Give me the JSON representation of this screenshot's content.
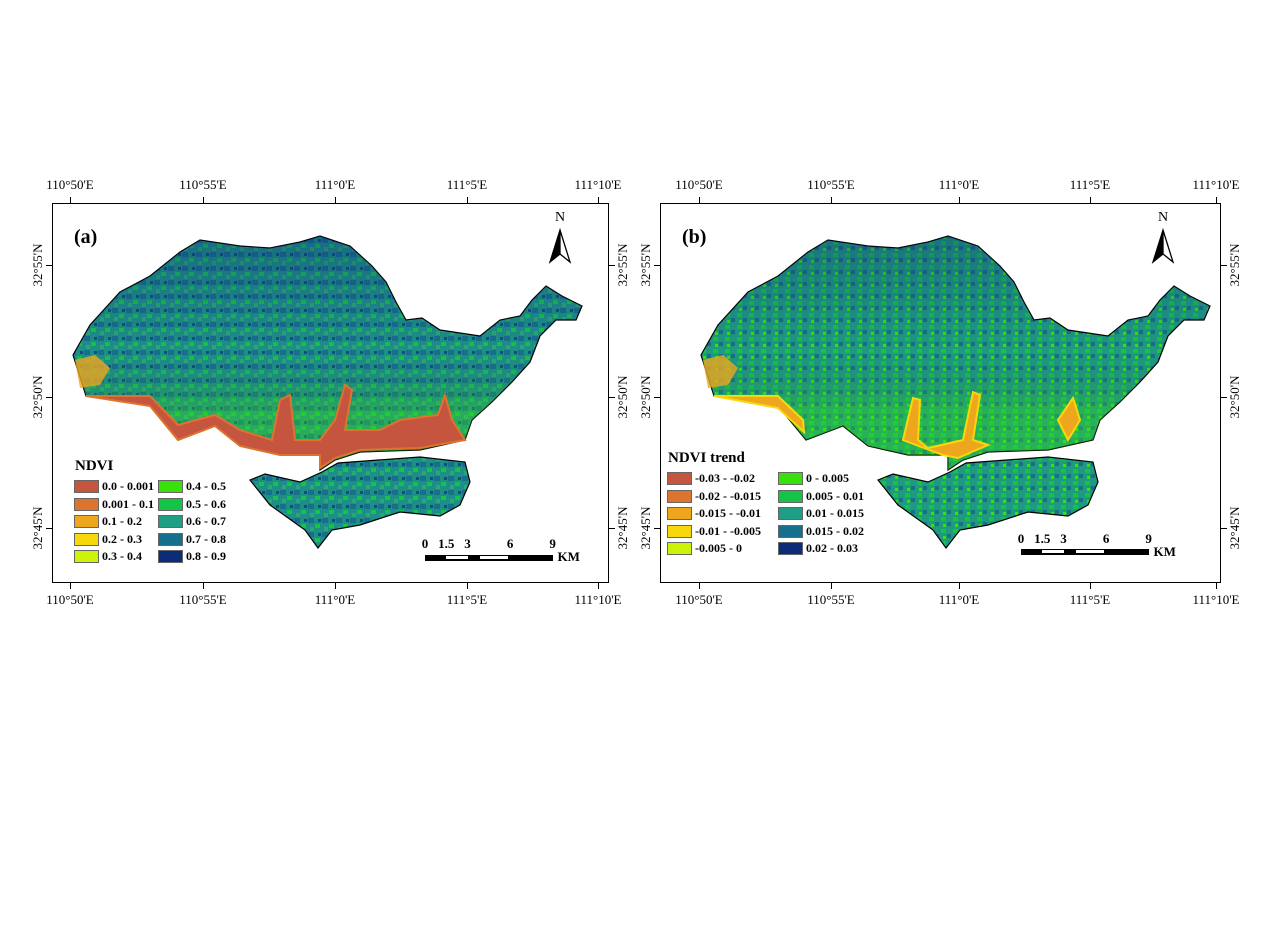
{
  "panels": [
    {
      "label": "(a)",
      "lon_ticks": [
        "110°50'E",
        "110°55'E",
        "111°0'E",
        "111°5'E",
        "111°10'E"
      ],
      "lat_ticks": [
        "32°55'N",
        "32°50'N",
        "32°45'N"
      ],
      "north": "N",
      "legend": {
        "title": "NDVI",
        "items": [
          {
            "label": "0.0 - 0.001",
            "color": "#c5553f"
          },
          {
            "label": "0.001 - 0.1",
            "color": "#dc7430"
          },
          {
            "label": "0.1 - 0.2",
            "color": "#eea61e"
          },
          {
            "label": "0.2 - 0.3",
            "color": "#f7d80c"
          },
          {
            "label": "0.3 - 0.4",
            "color": "#ccf20a"
          },
          {
            "label": "0.4 - 0.5",
            "color": "#3ae00c"
          },
          {
            "label": "0.5 - 0.6",
            "color": "#14c447"
          },
          {
            "label": "0.6 - 0.7",
            "color": "#1e9e84"
          },
          {
            "label": "0.7 - 0.8",
            "color": "#166f8b"
          },
          {
            "label": "0.8 - 0.9",
            "color": "#0d2c78"
          }
        ]
      },
      "scale_bar": {
        "labels": [
          "0",
          "1.5",
          "3",
          "6",
          "9"
        ],
        "unit": "KM"
      }
    },
    {
      "label": "(b)",
      "lon_ticks": [
        "110°50'E",
        "110°55'E",
        "111°0'E",
        "111°5'E",
        "111°10'E"
      ],
      "lat_ticks": [
        "32°55'N",
        "32°50'N",
        "32°45'N"
      ],
      "north": "N",
      "legend": {
        "title": "NDVI trend",
        "items": [
          {
            "label": "-0.03 - -0.02",
            "color": "#c5553f"
          },
          {
            "label": "-0.02 - -0.015",
            "color": "#dc7430"
          },
          {
            "label": "-0.015 - -0.01",
            "color": "#eea61e"
          },
          {
            "label": "-0.01 - -0.005",
            "color": "#f7d80c"
          },
          {
            "label": "-0.005 - 0",
            "color": "#ccf20a"
          },
          {
            "label": "0 - 0.005",
            "color": "#3ae00c"
          },
          {
            "label": "0.005 - 0.01",
            "color": "#14c447"
          },
          {
            "label": "0.01 - 0.015",
            "color": "#1e9e84"
          },
          {
            "label": "0.015 - 0.02",
            "color": "#166f8b"
          },
          {
            "label": "0.02 - 0.03",
            "color": "#0d2c78"
          }
        ]
      },
      "scale_bar": {
        "labels": [
          "0",
          "1.5",
          "3",
          "6",
          "9"
        ],
        "unit": "KM"
      }
    }
  ]
}
